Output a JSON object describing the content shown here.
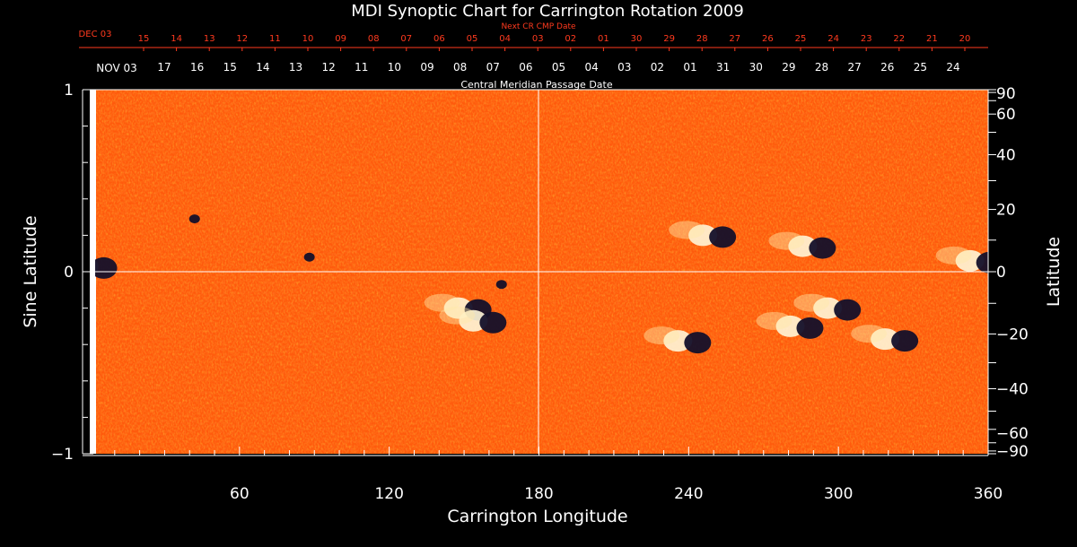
{
  "chart_data": {
    "type": "heatmap",
    "title": "MDI Synoptic Chart for Carrington Rotation 2009",
    "xlabel": "Carrington Longitude",
    "ylabel_left": "Sine Latitude",
    "ylabel_right": "Latitude",
    "top_axis_label": "Central Meridian Passage Date",
    "next_cmp_label": "Next CR CMP Date",
    "xlim": [
      0,
      360
    ],
    "ylim": [
      -1,
      1
    ],
    "x_ticks": [
      60,
      120,
      180,
      240,
      300,
      360
    ],
    "y_ticks_left": [
      {
        "value": 1,
        "label": "1"
      },
      {
        "value": 0,
        "label": "0"
      },
      {
        "value": -1,
        "label": "−1"
      }
    ],
    "latitude_ticks": [
      {
        "deg": 90,
        "label": "90"
      },
      {
        "deg": 60,
        "label": "60"
      },
      {
        "deg": 40,
        "label": "40"
      },
      {
        "deg": 20,
        "label": "20"
      },
      {
        "deg": 0,
        "label": "0"
      },
      {
        "deg": -20,
        "label": "−20"
      },
      {
        "deg": -40,
        "label": "−40"
      },
      {
        "deg": -60,
        "label": "−60"
      },
      {
        "deg": -90,
        "label": "−90"
      }
    ],
    "cmp_dates": {
      "month_label": "NOV 03",
      "labels": [
        "17",
        "16",
        "15",
        "14",
        "13",
        "12",
        "11",
        "10",
        "09",
        "08",
        "07",
        "06",
        "05",
        "04",
        "03",
        "02",
        "01",
        "31",
        "30",
        "29",
        "28",
        "27",
        "26",
        "25",
        "24"
      ]
    },
    "next_cmp_dates": {
      "month_label": "DEC 03",
      "labels": [
        "15",
        "14",
        "13",
        "12",
        "11",
        "10",
        "09",
        "08",
        "07",
        "06",
        "05",
        "04",
        "03",
        "02",
        "01",
        "30",
        "29",
        "28",
        "27",
        "26",
        "25",
        "24",
        "23",
        "22",
        "21",
        "20"
      ]
    },
    "colors": {
      "background": "#000000",
      "field_base": "#ff5a0c",
      "positive_polarity": "#ffffff",
      "negative_polarity": "#14102a",
      "next_cmp_text": "#ff3a1e",
      "axes": "#ffffff"
    },
    "active_regions": [
      {
        "lon": 2,
        "sinlat": 0.03,
        "polarity": "bipolar"
      },
      {
        "lon": 42,
        "sinlat": 0.29,
        "polarity": "negative"
      },
      {
        "lon": 88,
        "sinlat": 0.08,
        "polarity": "negative"
      },
      {
        "lon": 152,
        "sinlat": -0.2,
        "polarity": "bipolar"
      },
      {
        "lon": 158,
        "sinlat": -0.27,
        "polarity": "bipolar"
      },
      {
        "lon": 165,
        "sinlat": -0.07,
        "polarity": "negative"
      },
      {
        "lon": 240,
        "sinlat": -0.38,
        "polarity": "bipolar"
      },
      {
        "lon": 250,
        "sinlat": 0.2,
        "polarity": "bipolar"
      },
      {
        "lon": 290,
        "sinlat": 0.14,
        "polarity": "bipolar"
      },
      {
        "lon": 285,
        "sinlat": -0.3,
        "polarity": "bipolar"
      },
      {
        "lon": 300,
        "sinlat": -0.2,
        "polarity": "bipolar"
      },
      {
        "lon": 323,
        "sinlat": -0.37,
        "polarity": "bipolar"
      },
      {
        "lon": 357,
        "sinlat": 0.06,
        "polarity": "bipolar"
      }
    ]
  }
}
